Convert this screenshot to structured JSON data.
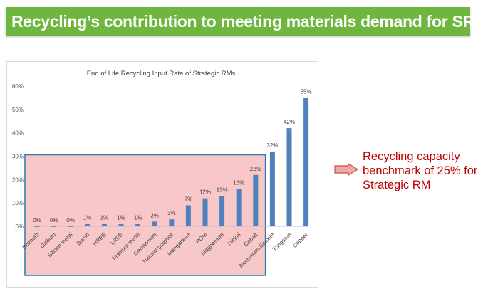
{
  "header": {
    "title": "Recycling’s contribution to meeting materials demand for SRMs"
  },
  "annotation": {
    "text": "Recycling capacity benchmark of 25% for Strategic RM"
  },
  "colors": {
    "banner": "#6fb63f",
    "bar": "#4f81bd",
    "highlight_fill": "#f8c8c8",
    "highlight_border": "#2e75b6",
    "annotation": "#c00000",
    "arrow_fill": "#f4a7a7",
    "arrow_stroke": "#c0504d"
  },
  "chart_data": {
    "type": "bar",
    "title": "End of Life Recycling Input Rate of Strategic RMs",
    "categories": [
      "Bismuth",
      "Gallium",
      "Silicon metal",
      "Boron",
      "HREE",
      "LREE",
      "Titanium metal",
      "Germanium",
      "Natural graphite",
      "Manganese",
      "PGM",
      "Magnesium",
      "Nickel",
      "Cobalt",
      "Aluminium/Bauxite",
      "Tungsten",
      "Copper"
    ],
    "values": [
      0,
      0,
      0,
      1,
      1,
      1,
      1,
      2,
      3,
      9,
      12,
      13,
      16,
      22,
      32,
      42,
      55
    ],
    "data_labels": [
      "0%",
      "0%",
      "0%",
      "1%",
      "1%",
      "1%",
      "1%",
      "2%",
      "3%",
      "9%",
      "12%",
      "13%",
      "16%",
      "22%",
      "32%",
      "42%",
      "55%"
    ],
    "yticks": [
      "0%",
      "10%",
      "20%",
      "30%",
      "40%",
      "50%",
      "60%"
    ],
    "ylim": [
      0,
      60
    ],
    "xlabel": "",
    "ylabel": "",
    "highlight_threshold": 30,
    "highlight_category_count": 14
  }
}
